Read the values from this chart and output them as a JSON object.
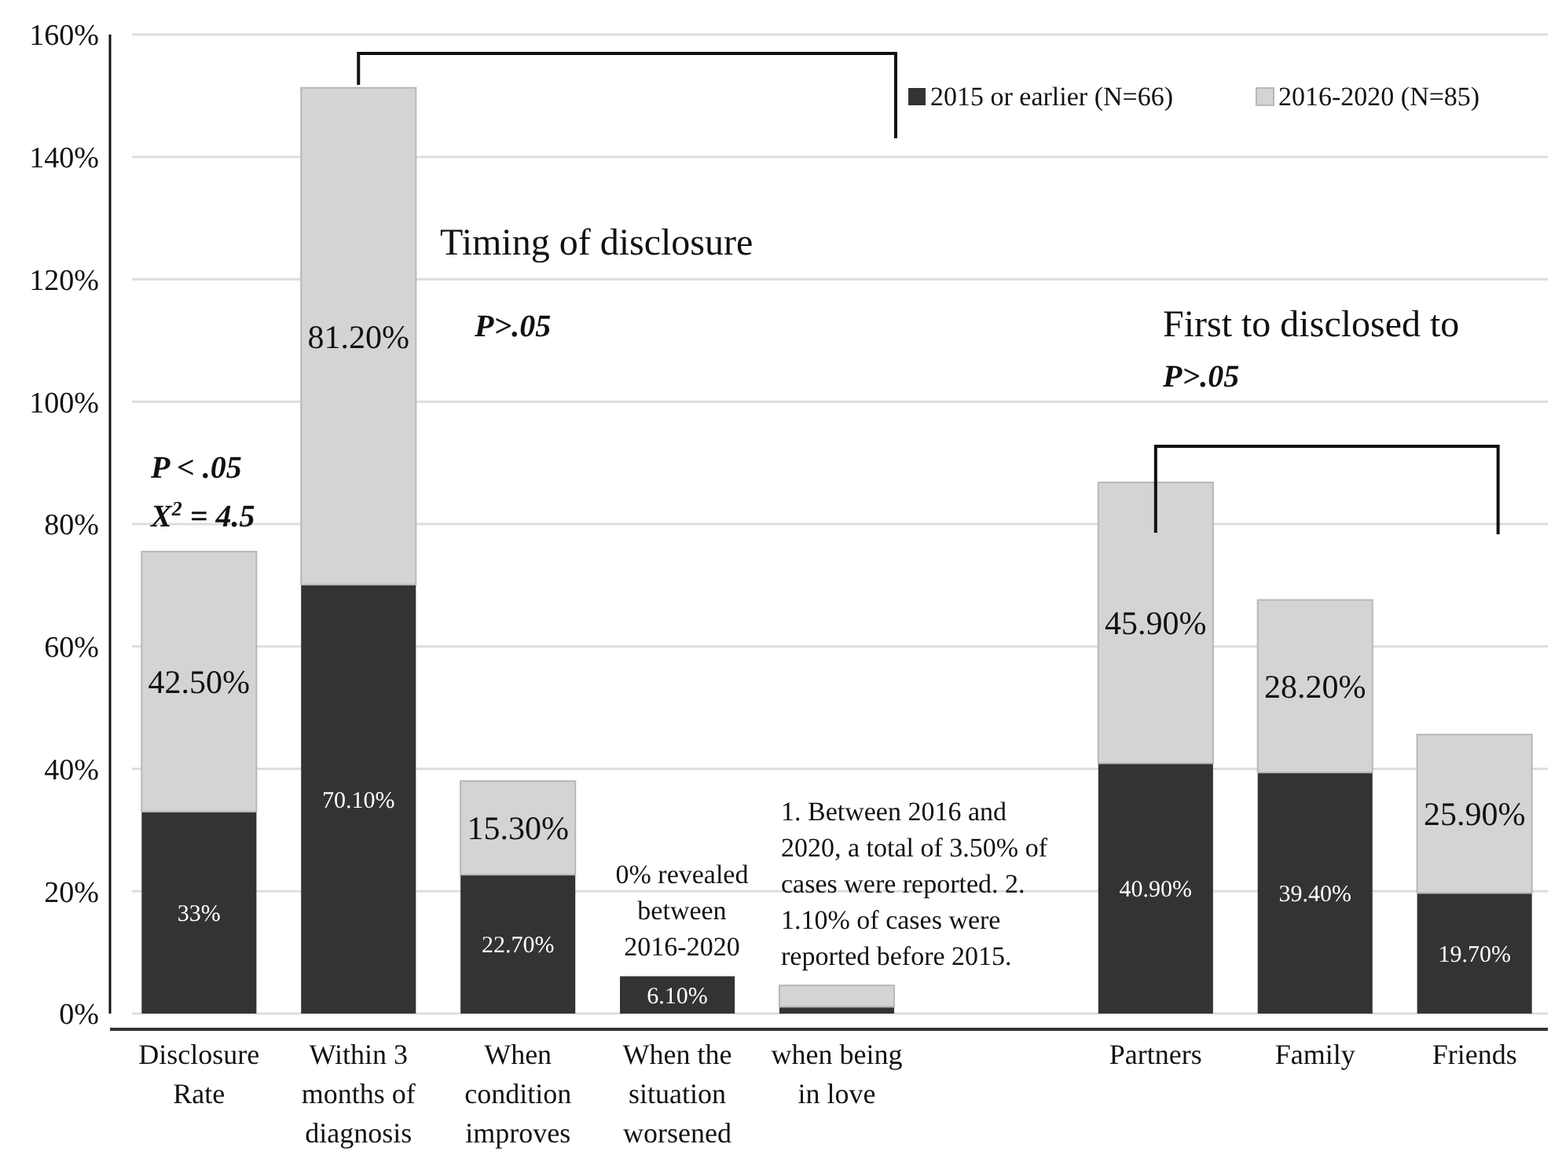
{
  "chart_data": {
    "type": "bar",
    "stacked": true,
    "categories": [
      "Disclosure Rate",
      "Within 3 months of diagnosis",
      "When condition improves",
      "When the situation worsened",
      "when being in love",
      null,
      "Partners",
      "Family",
      "Friends"
    ],
    "series": [
      {
        "name": "2015 or earlier (N=66)",
        "color": "#333333",
        "values": [
          33,
          70.1,
          22.7,
          6.1,
          1.1,
          null,
          40.9,
          39.4,
          19.7
        ],
        "value_labels": [
          "33%",
          "70.10%",
          "22.70%",
          "6.10%",
          null,
          null,
          "40.90%",
          "39.40%",
          "19.70%"
        ]
      },
      {
        "name": "2016-2020 (N=85)",
        "color": "#d4d4d4",
        "values": [
          42.5,
          81.2,
          15.3,
          0,
          3.5,
          null,
          45.9,
          28.2,
          25.9
        ],
        "value_labels": [
          "42.50%",
          "81.20%",
          "15.30%",
          null,
          null,
          null,
          "45.90%",
          "28.20%",
          "25.90%"
        ]
      }
    ],
    "ylim": [
      0,
      160
    ],
    "yticks": [
      {
        "value": 0,
        "label": "0%"
      },
      {
        "value": 20,
        "label": "20%"
      },
      {
        "value": 40,
        "label": "40%"
      },
      {
        "value": 60,
        "label": "60%"
      },
      {
        "value": 80,
        "label": "80%"
      },
      {
        "value": 100,
        "label": "100%"
      },
      {
        "value": 120,
        "label": "120%"
      },
      {
        "value": 140,
        "label": "140%"
      },
      {
        "value": 160,
        "label": "160%"
      }
    ],
    "grid": "y",
    "legend": "top right",
    "annotations": [
      "Timing of disclosure",
      "P>.05",
      "P < .05",
      "X$^{2}$ = 4.5",
      "First to disclosed to",
      "P>.05",
      "0% revealed between 2016-2020",
      "1. Between 2016 and 2020, a total of 3.50% of cases were reported. 2. 1.10% of cases were reported before 2015."
    ]
  }
}
